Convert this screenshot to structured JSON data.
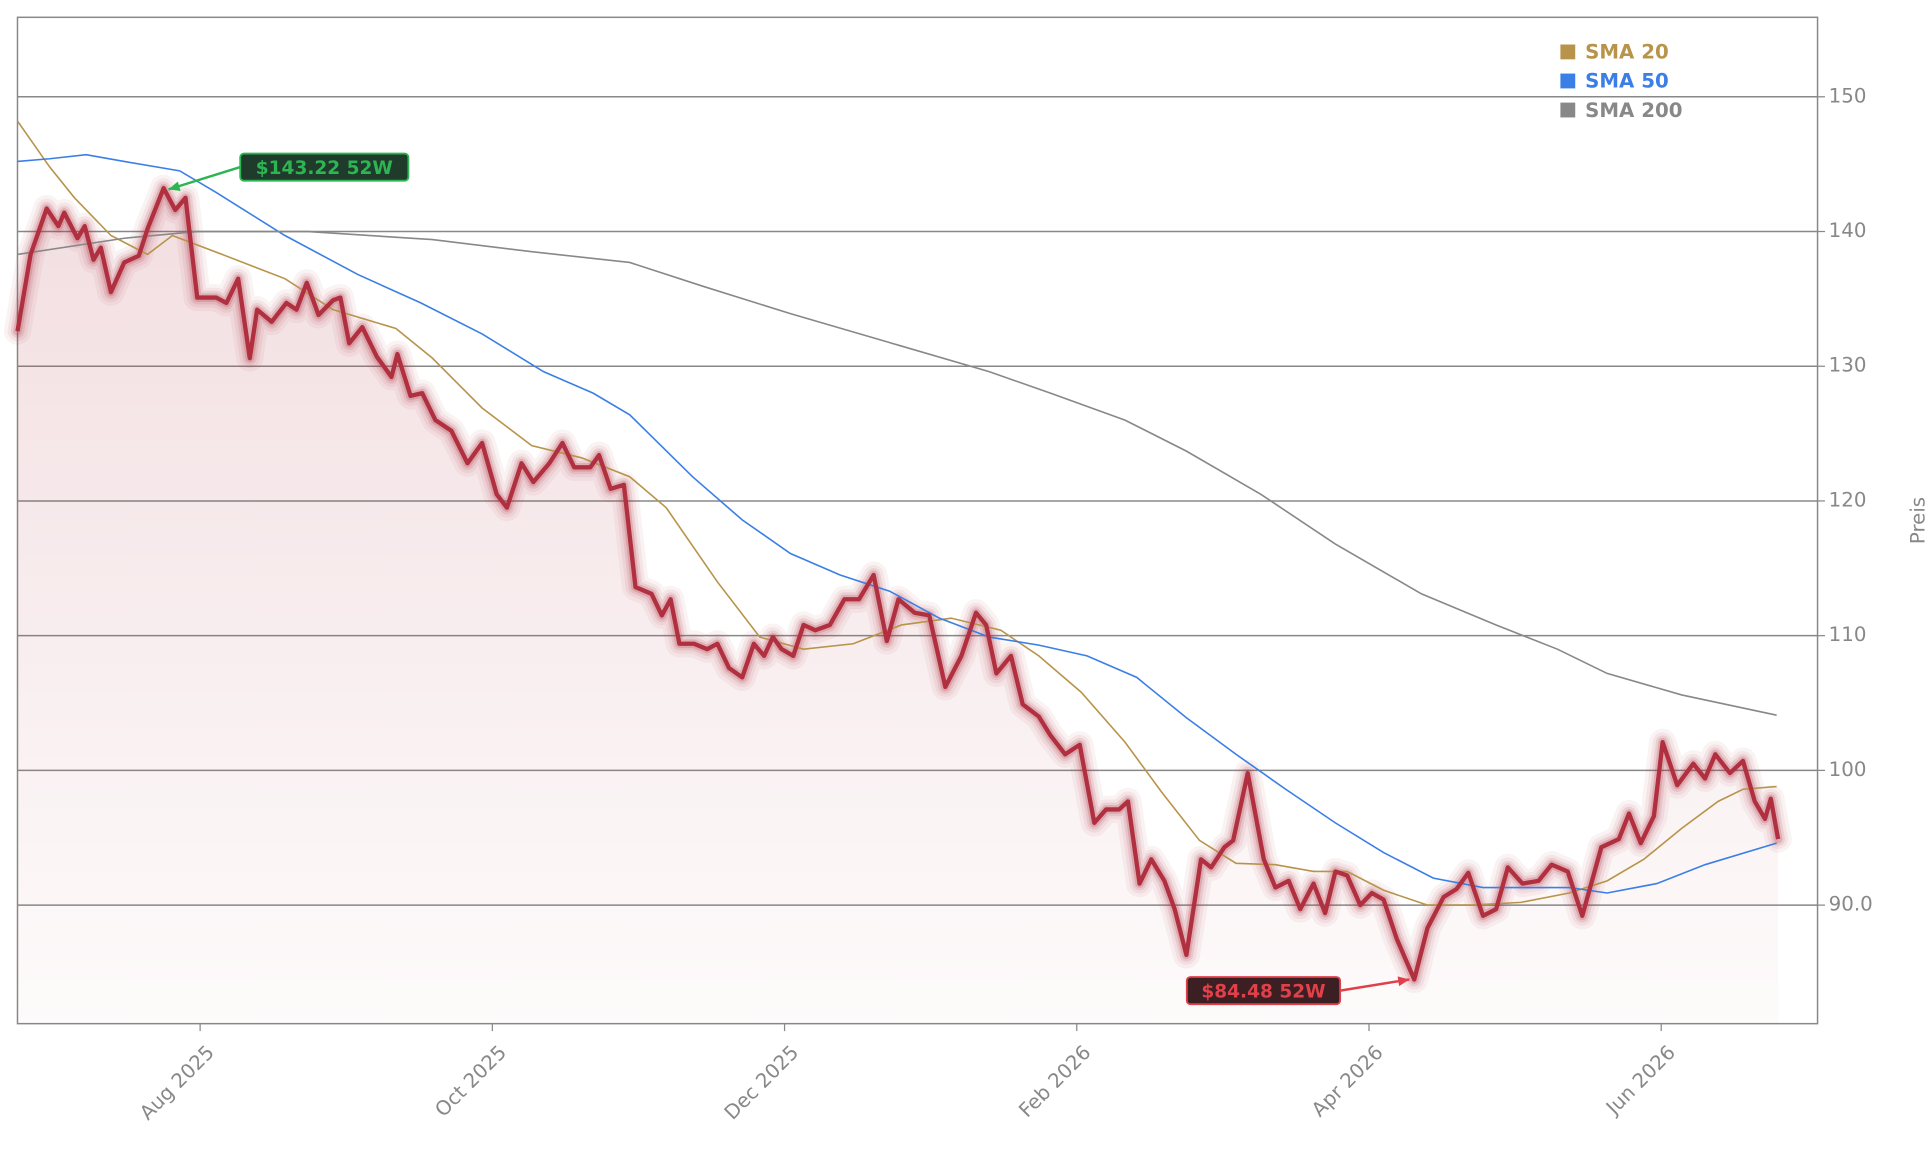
{
  "chart_data": {
    "type": "line",
    "y_label": "Preis",
    "xlim": [
      -0.25,
      12.07
    ],
    "xticks": [
      {
        "value": 1,
        "label": "Aug 2025"
      },
      {
        "value": 3,
        "label": "Oct 2025"
      },
      {
        "value": 5,
        "label": "Dec 2025"
      },
      {
        "value": 7,
        "label": "Feb 2026"
      },
      {
        "value": 9,
        "label": "Apr 2026"
      },
      {
        "value": 11,
        "label": "Jun 2026"
      }
    ],
    "ylim": [
      81.2,
      155.9
    ],
    "yticks": [
      {
        "value": 90,
        "label": "90.0"
      },
      100,
      110,
      120,
      130,
      140,
      150
    ],
    "grid": true,
    "legend": "upper right",
    "price": {
      "color": "#b03040",
      "x": [
        -0.25,
        -0.16,
        -0.05,
        0.03,
        0.07,
        0.16,
        0.21,
        0.27,
        0.32,
        0.39,
        0.48,
        0.58,
        0.64,
        0.75,
        0.83,
        0.9,
        0.98,
        1.11,
        1.18,
        1.26,
        1.34,
        1.39,
        1.49,
        1.59,
        1.66,
        1.73,
        1.81,
        1.91,
        1.96,
        2.02,
        2.11,
        2.21,
        2.31,
        2.35,
        2.44,
        2.52,
        2.61,
        2.72,
        2.83,
        2.93,
        3.03,
        3.1,
        3.2,
        3.28,
        3.39,
        3.48,
        3.56,
        3.67,
        3.73,
        3.81,
        3.9,
        3.98,
        4.09,
        4.16,
        4.22,
        4.28,
        4.38,
        4.47,
        4.54,
        4.62,
        4.71,
        4.79,
        4.86,
        4.92,
        4.98,
        5.06,
        5.13,
        5.21,
        5.31,
        5.41,
        5.51,
        5.61,
        5.7,
        5.78,
        5.89,
        5.99,
        6.1,
        6.21,
        6.31,
        6.38,
        6.45,
        6.55,
        6.63,
        6.74,
        6.82,
        6.92,
        7.02,
        7.12,
        7.2,
        7.29,
        7.35,
        7.43,
        7.51,
        7.6,
        7.67,
        7.75,
        7.85,
        7.92,
        8.01,
        8.07,
        8.17,
        8.28,
        8.36,
        8.45,
        8.53,
        8.62,
        8.7,
        8.77,
        8.85,
        8.94,
        9.02,
        9.1,
        9.19,
        9.31,
        9.4,
        9.51,
        9.6,
        9.68,
        9.78,
        9.87,
        9.95,
        10.05,
        10.16,
        10.25,
        10.36,
        10.46,
        10.59,
        10.71,
        10.78,
        10.86,
        10.95,
        11.01,
        11.11,
        11.22,
        11.3,
        11.37,
        11.47,
        11.56,
        11.64,
        11.71,
        11.75,
        11.8
      ],
      "values": [
        132.6,
        138.3,
        141.7,
        140.4,
        141.4,
        139.5,
        140.4,
        137.9,
        138.8,
        135.5,
        137.7,
        138.2,
        140.2,
        143.22,
        141.6,
        142.5,
        135.1,
        135.1,
        134.7,
        136.5,
        130.6,
        134.2,
        133.3,
        134.7,
        134.2,
        136.2,
        133.8,
        134.9,
        135.1,
        131.7,
        132.9,
        130.7,
        129.2,
        130.9,
        127.8,
        128.0,
        126.0,
        125.2,
        122.8,
        124.3,
        120.5,
        119.5,
        122.8,
        121.4,
        122.8,
        124.3,
        122.5,
        122.5,
        123.4,
        120.9,
        121.2,
        113.6,
        113.1,
        111.5,
        112.7,
        109.4,
        109.4,
        109.0,
        109.4,
        107.6,
        106.9,
        109.4,
        108.5,
        109.9,
        109.0,
        108.5,
        110.8,
        110.4,
        110.8,
        112.7,
        112.7,
        114.5,
        109.6,
        112.7,
        111.7,
        111.5,
        106.2,
        108.5,
        111.7,
        110.8,
        107.2,
        108.5,
        104.9,
        104.0,
        102.6,
        101.2,
        101.9,
        96.1,
        97.1,
        97.1,
        97.7,
        91.6,
        93.4,
        91.8,
        89.7,
        86.3,
        93.4,
        92.8,
        94.3,
        94.8,
        99.8,
        93.4,
        91.3,
        91.8,
        89.7,
        91.6,
        89.4,
        92.5,
        92.2,
        90.0,
        90.9,
        90.4,
        87.5,
        84.48,
        88.3,
        90.6,
        91.2,
        92.4,
        89.2,
        89.7,
        92.8,
        91.6,
        91.8,
        93.0,
        92.5,
        89.2,
        94.3,
        94.9,
        96.8,
        94.6,
        96.6,
        102.1,
        98.9,
        100.5,
        99.4,
        101.2,
        99.8,
        100.7,
        97.7,
        96.4,
        97.9,
        94.9
      ]
    },
    "series": [
      {
        "name": "SMA 20",
        "color": "#b8944a",
        "x": [
          -0.25,
          -0.03,
          0.14,
          0.39,
          0.64,
          0.81,
          1.15,
          1.58,
          1.91,
          2.34,
          2.59,
          2.93,
          3.27,
          3.61,
          3.94,
          4.19,
          4.54,
          4.83,
          5.13,
          5.47,
          5.8,
          6.14,
          6.48,
          6.74,
          7.03,
          7.33,
          7.58,
          7.84,
          8.09,
          8.36,
          8.62,
          8.85,
          9.1,
          9.4,
          9.7,
          10.04,
          10.37,
          10.63,
          10.88,
          11.14,
          11.39,
          11.56,
          11.79
        ],
        "values": [
          148.2,
          144.8,
          142.5,
          139.7,
          138.3,
          139.7,
          138.3,
          136.5,
          134.2,
          132.8,
          130.6,
          126.9,
          124.1,
          123.2,
          121.8,
          119.5,
          114.0,
          109.9,
          109.0,
          109.4,
          110.8,
          111.3,
          110.4,
          108.5,
          105.8,
          102.1,
          98.4,
          94.8,
          93.1,
          93.0,
          92.5,
          92.5,
          91.1,
          90.0,
          90.0,
          90.2,
          90.9,
          91.8,
          93.4,
          95.7,
          97.7,
          98.6,
          98.8
        ]
      },
      {
        "name": "SMA 50",
        "color": "#3b7fe6",
        "x": [
          -0.25,
          -0.03,
          0.22,
          0.48,
          0.86,
          1.11,
          1.58,
          2.08,
          2.51,
          2.93,
          3.35,
          3.69,
          3.94,
          4.37,
          4.71,
          5.04,
          5.38,
          5.72,
          6.06,
          6.4,
          6.74,
          7.07,
          7.41,
          7.75,
          8.09,
          8.43,
          8.77,
          9.1,
          9.44,
          9.78,
          10.12,
          10.37,
          10.63,
          10.97,
          11.3,
          11.79
        ],
        "values": [
          145.2,
          145.4,
          145.7,
          145.2,
          144.5,
          142.9,
          139.7,
          136.8,
          134.7,
          132.4,
          129.6,
          128.0,
          126.4,
          121.8,
          118.6,
          116.1,
          114.5,
          113.3,
          111.3,
          109.9,
          109.3,
          108.5,
          106.9,
          103.9,
          101.2,
          98.6,
          96.1,
          93.9,
          92.0,
          91.3,
          91.3,
          91.3,
          90.9,
          91.6,
          93.0,
          94.6
        ]
      },
      {
        "name": "SMA 200",
        "color": "#888888",
        "x": [
          -0.25,
          0.48,
          0.98,
          1.74,
          2.59,
          3.27,
          3.94,
          4.45,
          5.04,
          5.8,
          6.4,
          6.82,
          7.33,
          7.75,
          8.26,
          8.77,
          9.36,
          9.87,
          10.29,
          10.63,
          11.14,
          11.79
        ],
        "values": [
          138.3,
          139.5,
          140.0,
          140.0,
          139.4,
          138.5,
          137.7,
          135.9,
          133.9,
          131.5,
          129.6,
          128.0,
          126.0,
          123.7,
          120.5,
          116.8,
          113.1,
          110.8,
          109.0,
          107.2,
          105.6,
          104.1
        ]
      }
    ],
    "annotations": [
      {
        "text": "$143.22 52W",
        "x": 0.75,
        "y": 143.22,
        "color": "#2db552",
        "background": "#1f3b2b"
      },
      {
        "text": "$84.48 52W",
        "x": 9.31,
        "y": 84.48,
        "color": "#e0404a",
        "background": "#3b1f22"
      }
    ]
  }
}
